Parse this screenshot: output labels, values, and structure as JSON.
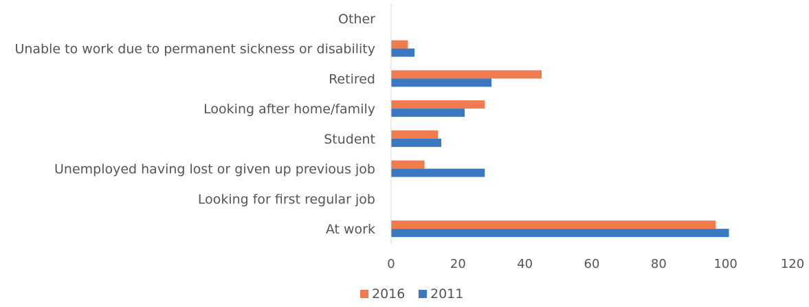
{
  "chart_data": {
    "type": "bar",
    "orientation": "horizontal",
    "categories": [
      "Other",
      "Unable to work due to permanent sickness or disability",
      "Retired",
      "Looking after home/family",
      "Student",
      "Unemployed having lost or given up previous job",
      "Looking for first regular job",
      "At work"
    ],
    "series": [
      {
        "name": "2016",
        "color": "#F07B4F",
        "values": [
          0,
          5,
          45,
          28,
          14,
          10,
          0,
          97
        ]
      },
      {
        "name": "2011",
        "color": "#3A78C2",
        "values": [
          0,
          7,
          30,
          22,
          15,
          28,
          0,
          101
        ]
      }
    ],
    "xlim": [
      0,
      120
    ],
    "xticks": [
      0,
      20,
      40,
      60,
      80,
      100,
      120
    ],
    "xlabel": "",
    "ylabel": "",
    "title": "",
    "grid": false,
    "legend_position": "bottom"
  }
}
